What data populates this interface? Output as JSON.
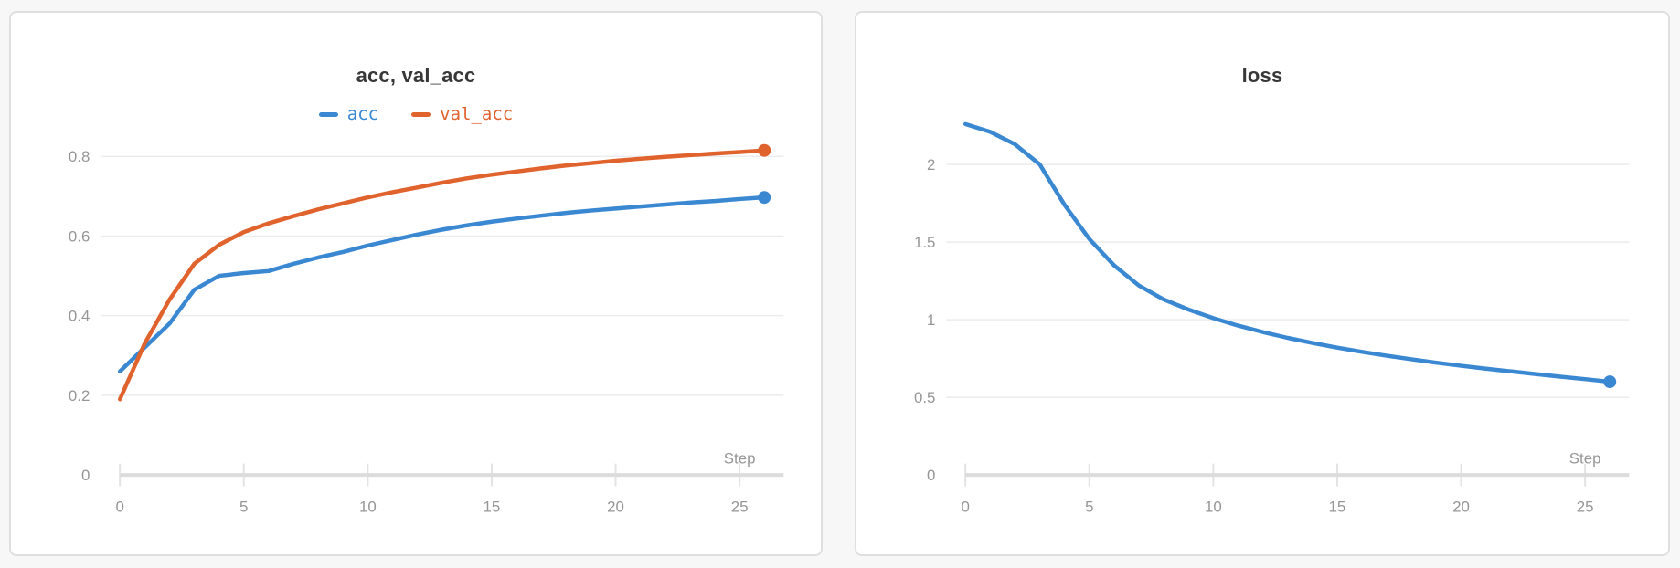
{
  "colors": {
    "page_bg": "#f7f7f7",
    "panel_bg": "#ffffff",
    "panel_border": "#dfdfdf",
    "grid": "#ececec",
    "axis": "#dcdcdc",
    "tickmark": "#e3e3e3",
    "tick_label": "#969696",
    "title": "#383838",
    "series_blue": "#3a87d2",
    "series_orange": "#e0622d"
  },
  "chart_data": [
    {
      "type": "line",
      "title": "acc, val_acc",
      "xlabel": "Step",
      "grid": true,
      "legend_position": "top-center",
      "xlim": [
        0,
        26
      ],
      "ylim": [
        0,
        0.885
      ],
      "x_ticks": [
        0,
        5,
        10,
        15,
        20,
        25
      ],
      "y_ticks": [
        0,
        0.2,
        0.4,
        0.6,
        0.8
      ],
      "x": [
        0,
        1,
        2,
        3,
        4,
        5,
        6,
        7,
        8,
        9,
        10,
        11,
        12,
        13,
        14,
        15,
        16,
        17,
        18,
        19,
        20,
        21,
        22,
        23,
        24,
        25,
        26
      ],
      "series": [
        {
          "name": "acc",
          "color": "#3a87d2",
          "end_marker": true,
          "values": [
            0.26,
            0.32,
            0.38,
            0.465,
            0.5,
            0.507,
            0.512,
            0.53,
            0.546,
            0.56,
            0.576,
            0.59,
            0.604,
            0.616,
            0.627,
            0.636,
            0.644,
            0.651,
            0.658,
            0.664,
            0.669,
            0.674,
            0.679,
            0.684,
            0.688,
            0.693,
            0.697
          ]
        },
        {
          "name": "val_acc",
          "color": "#e0622d",
          "end_marker": true,
          "values": [
            0.19,
            0.33,
            0.44,
            0.53,
            0.578,
            0.61,
            0.632,
            0.65,
            0.667,
            0.682,
            0.697,
            0.71,
            0.722,
            0.734,
            0.745,
            0.754,
            0.762,
            0.77,
            0.777,
            0.783,
            0.789,
            0.794,
            0.799,
            0.803,
            0.807,
            0.811,
            0.815
          ]
        }
      ]
    },
    {
      "type": "line",
      "title": "loss",
      "xlabel": "Step",
      "grid": true,
      "legend_position": "none",
      "xlim": [
        0,
        26
      ],
      "ylim": [
        0,
        2.27
      ],
      "x_ticks": [
        0,
        5,
        10,
        15,
        20,
        25
      ],
      "y_ticks": [
        0,
        0.5,
        1,
        1.5,
        2
      ],
      "x": [
        0,
        1,
        2,
        3,
        4,
        5,
        6,
        7,
        8,
        9,
        10,
        11,
        12,
        13,
        14,
        15,
        16,
        17,
        18,
        19,
        20,
        21,
        22,
        23,
        24,
        25,
        26
      ],
      "series": [
        {
          "name": "loss",
          "color": "#3a87d2",
          "end_marker": true,
          "values": [
            2.26,
            2.21,
            2.13,
            2.0,
            1.74,
            1.52,
            1.35,
            1.22,
            1.13,
            1.065,
            1.01,
            0.962,
            0.92,
            0.883,
            0.85,
            0.82,
            0.793,
            0.768,
            0.745,
            0.723,
            0.703,
            0.684,
            0.667,
            0.65,
            0.633,
            0.617,
            0.6
          ]
        }
      ]
    }
  ]
}
